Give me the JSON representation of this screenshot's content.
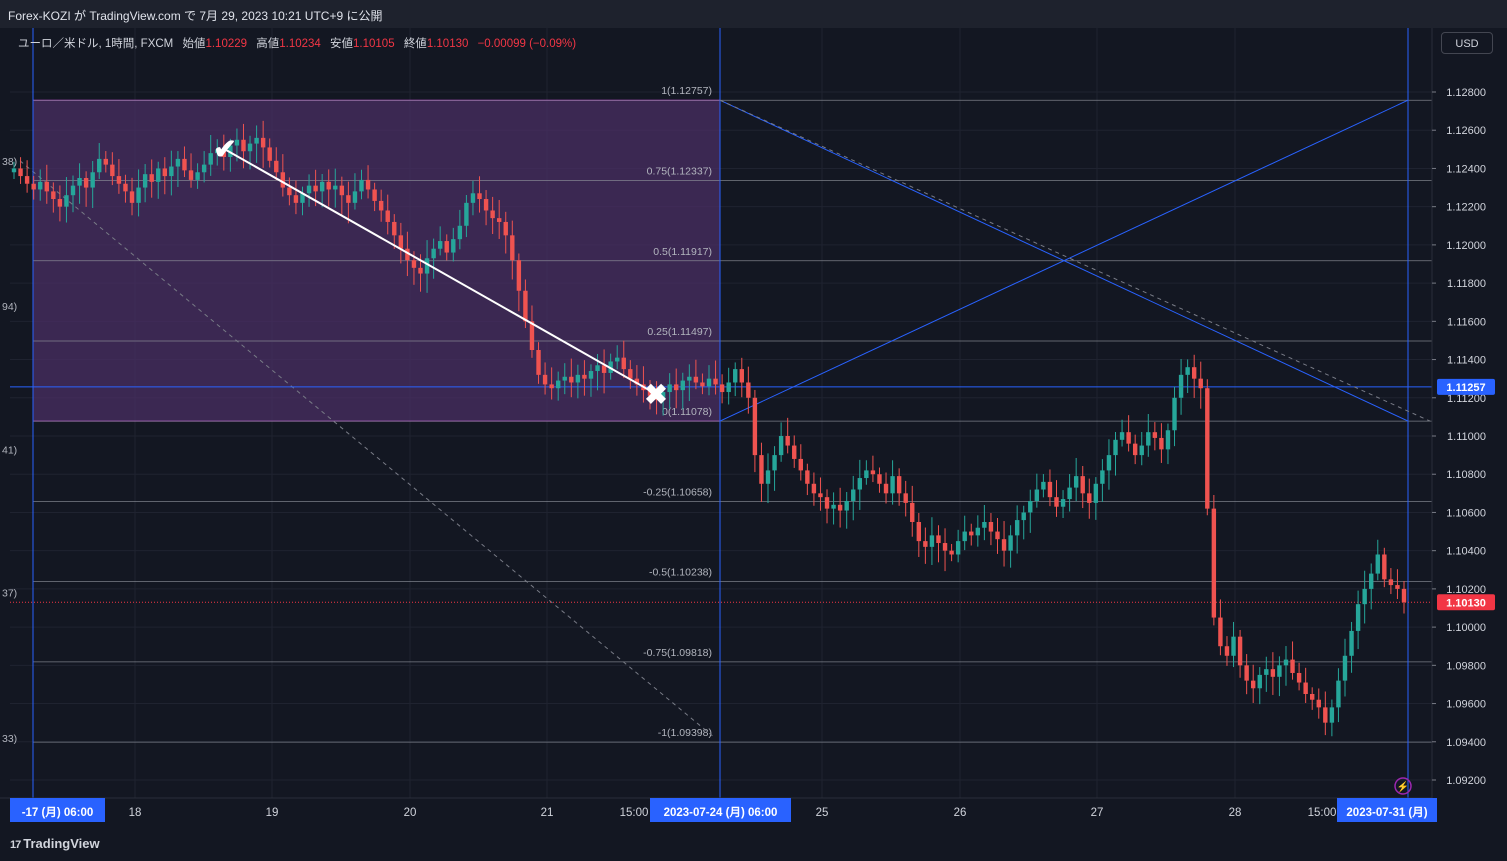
{
  "header": {
    "publish_info": "Forex-KOZI が TradingView.com で 7月 29, 2023 10:21 UTC+9 に公開"
  },
  "legend": {
    "symbol": "ユーロ／米ドル, 1時間, FXCM",
    "open_label": "始値",
    "open": "1.10229",
    "high_label": "高値",
    "high": "1.10234",
    "low_label": "安値",
    "low": "1.10105",
    "close_label": "終値",
    "close": "1.10130",
    "change": "−0.00099 (−0.09%)"
  },
  "currency_button": "USD",
  "footer": {
    "logo_text": "TradingView",
    "logo_mark": "17"
  },
  "colors": {
    "background": "#131722",
    "up": "#26a69a",
    "down": "#ef5350",
    "accent_blue": "#2962ff",
    "fib_zone": "#4a2f63",
    "fib_border": "#9c27b0",
    "price_tag_red": "#f23645",
    "price_tag_blue": "#2962ff"
  },
  "chart_data": {
    "type": "candlestick",
    "symbol": "EUR/USD",
    "interval": "1時間",
    "y_axis": {
      "ticks": [
        "1.12800",
        "1.12600",
        "1.12400",
        "1.12200",
        "1.12000",
        "1.11800",
        "1.11600",
        "1.11400",
        "1.11200",
        "1.11000",
        "1.10800",
        "1.10600",
        "1.10400",
        "1.10200",
        "1.10000",
        "1.09800",
        "1.09600",
        "1.09400",
        "1.09200"
      ],
      "range": [
        1.091,
        1.1305
      ]
    },
    "x_axis": {
      "day_ticks": [
        "18",
        "19",
        "20",
        "21",
        "25",
        "26",
        "27",
        "28"
      ],
      "time_ticks": [
        "15:00",
        "15:00"
      ],
      "highlight_labels": [
        "-17 (月)  06:00",
        "2023-07-24 (月)  06:00",
        "2023-07-31 (月)"
      ]
    },
    "price_tags": {
      "blue_line": "1.11257",
      "last_close": "1.10130"
    },
    "fib_left": {
      "levels": [
        {
          "label": "1(1.12757)",
          "value": 1.12757
        },
        {
          "label": "0.75(1.12337)",
          "value": 1.12337
        },
        {
          "label": "0.5(1.11917)",
          "value": 1.11917
        },
        {
          "label": "0.25(1.11497)",
          "value": 1.11497
        },
        {
          "label": "0(1.11078)",
          "value": 1.11078
        },
        {
          "label": "-0.25(1.10658)",
          "value": 1.10658
        },
        {
          "label": "-0.5(1.10238)",
          "value": 1.10238
        },
        {
          "label": "-0.75(1.09818)",
          "value": 1.09818
        },
        {
          "label": "-1(1.09398)",
          "value": 1.09398
        }
      ],
      "zone_top": 1.12757,
      "zone_bottom": 1.11078
    },
    "fib_right_levels": [
      1.12757,
      1.12337,
      1.11917,
      1.11497,
      1.11078,
      1.10658,
      1.10238,
      1.09818,
      1.09398
    ],
    "left_edge_labels": [
      "38)",
      "94)",
      "41)",
      "37)",
      "33)"
    ],
    "horizontal_line": 1.11257,
    "path_markers": {
      "start": {
        "symbol": "✔",
        "price": 1.125
      },
      "end": {
        "symbol": "✖",
        "price": 1.1122
      }
    },
    "candles_close": [
      1.124,
      1.1236,
      1.1232,
      1.1229,
      1.1233,
      1.1228,
      1.1224,
      1.122,
      1.1226,
      1.1231,
      1.1235,
      1.123,
      1.1238,
      1.1245,
      1.1242,
      1.1236,
      1.1232,
      1.1228,
      1.1222,
      1.123,
      1.1237,
      1.1233,
      1.124,
      1.1236,
      1.1241,
      1.1245,
      1.1239,
      1.1234,
      1.1238,
      1.1242,
      1.1248,
      1.125,
      1.1246,
      1.1252,
      1.1255,
      1.1249,
      1.1253,
      1.1256,
      1.1251,
      1.1244,
      1.1238,
      1.123,
      1.1226,
      1.1222,
      1.1227,
      1.1231,
      1.1228,
      1.1233,
      1.1229,
      1.1231,
      1.1226,
      1.1222,
      1.1228,
      1.1234,
      1.1229,
      1.1223,
      1.1218,
      1.1212,
      1.1205,
      1.1198,
      1.1192,
      1.1188,
      1.1185,
      1.1193,
      1.1198,
      1.1202,
      1.1196,
      1.1203,
      1.121,
      1.1222,
      1.1227,
      1.1224,
      1.1218,
      1.1214,
      1.1212,
      1.1205,
      1.1192,
      1.1176,
      1.116,
      1.1145,
      1.1132,
      1.1127,
      1.1125,
      1.1129,
      1.1131,
      1.1128,
      1.1132,
      1.113,
      1.1134,
      1.1137,
      1.1133,
      1.1139,
      1.1141,
      1.1135,
      1.113,
      1.1127,
      1.1124,
      1.1121,
      1.1119,
      1.1123,
      1.1127,
      1.1124,
      1.1129,
      1.1131,
      1.1128,
      1.1126,
      1.113,
      1.1127,
      1.1123,
      1.1128,
      1.1135,
      1.1128,
      1.112,
      1.109,
      1.1075,
      1.1082,
      1.109,
      1.11,
      1.1095,
      1.1088,
      1.1082,
      1.1075,
      1.107,
      1.1068,
      1.1062,
      1.1064,
      1.1061,
      1.1066,
      1.1072,
      1.1078,
      1.1082,
      1.108,
      1.1075,
      1.107,
      1.1079,
      1.107,
      1.1065,
      1.1055,
      1.1045,
      1.1042,
      1.1048,
      1.1044,
      1.104,
      1.1038,
      1.1045,
      1.105,
      1.1048,
      1.1052,
      1.1055,
      1.105,
      1.1046,
      1.104,
      1.1048,
      1.1056,
      1.106,
      1.1066,
      1.1072,
      1.1076,
      1.1068,
      1.1063,
      1.1067,
      1.1073,
      1.1079,
      1.107,
      1.1065,
      1.1075,
      1.1082,
      1.109,
      1.1098,
      1.1102,
      1.1096,
      1.109,
      1.1095,
      1.1102,
      1.1099,
      1.1093,
      1.1103,
      1.112,
      1.1132,
      1.1136,
      1.113,
      1.1125,
      1.1062,
      1.1005,
      1.099,
      1.0985,
      1.0995,
      1.098,
      1.0972,
      1.0968,
      1.0975,
      1.0978,
      1.0974,
      1.098,
      1.0983,
      1.0976,
      1.0971,
      1.0965,
      1.0962,
      1.0958,
      1.095,
      1.0958,
      1.0972,
      1.0985,
      1.0998,
      1.1012,
      1.102,
      1.1028,
      1.1038,
      1.1025,
      1.1022,
      1.102,
      1.1013
    ]
  }
}
